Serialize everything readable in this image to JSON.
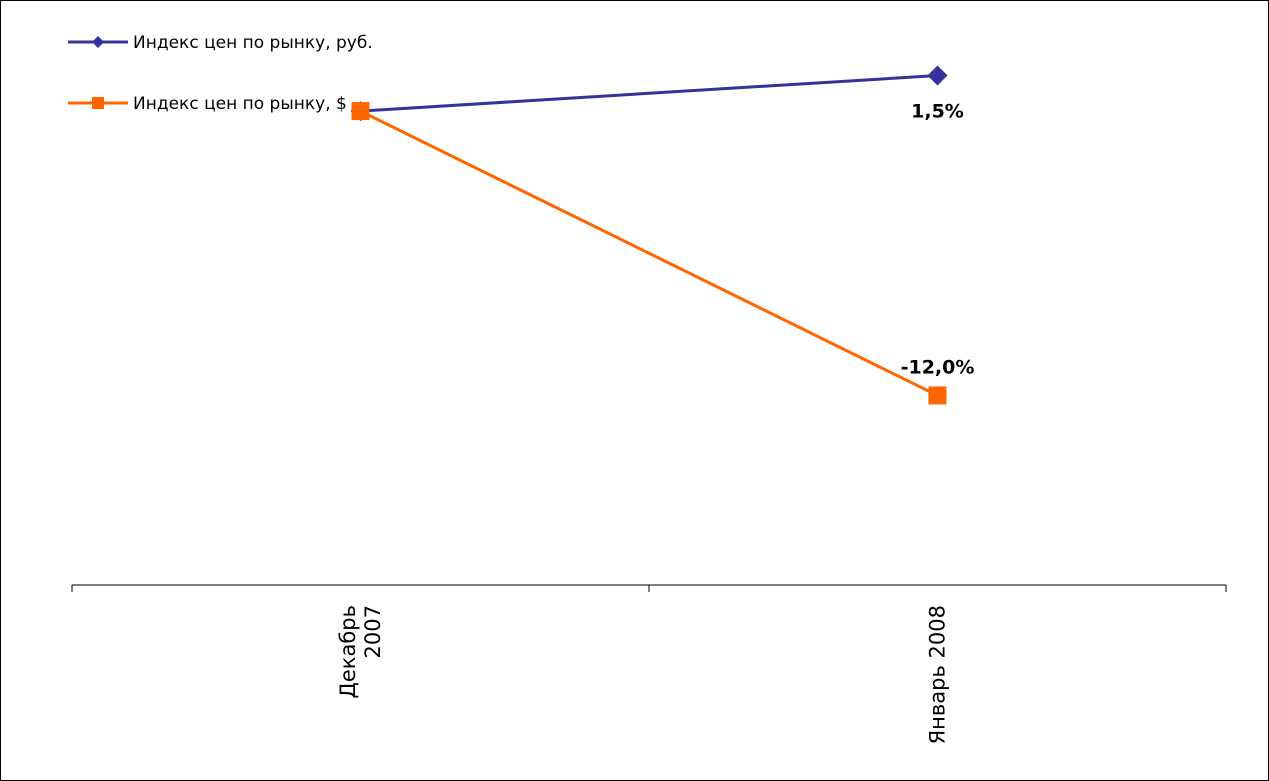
{
  "chart_data": {
    "type": "line",
    "categories": [
      "Декабрь 2007",
      "Январь 2008"
    ],
    "category_label_lines": [
      [
        "Декабрь",
        "2007"
      ],
      [
        "Январь 2008"
      ]
    ],
    "series": [
      {
        "name": "Индекс цен по рынку, руб.",
        "values": [
          0.0,
          1.5
        ],
        "data_labels": [
          "",
          "1,5%"
        ],
        "color": "#333399",
        "marker": "diamond"
      },
      {
        "name": "Индекс цен по рынку, $",
        "values": [
          0.0,
          -12.0
        ],
        "data_labels": [
          "",
          "-12,0%"
        ],
        "color": "#ff6600",
        "marker": "square"
      }
    ],
    "ylim": [
      -20.0,
      3.0
    ],
    "y_axis_visible": false,
    "grid": false,
    "legend": "top-left"
  }
}
